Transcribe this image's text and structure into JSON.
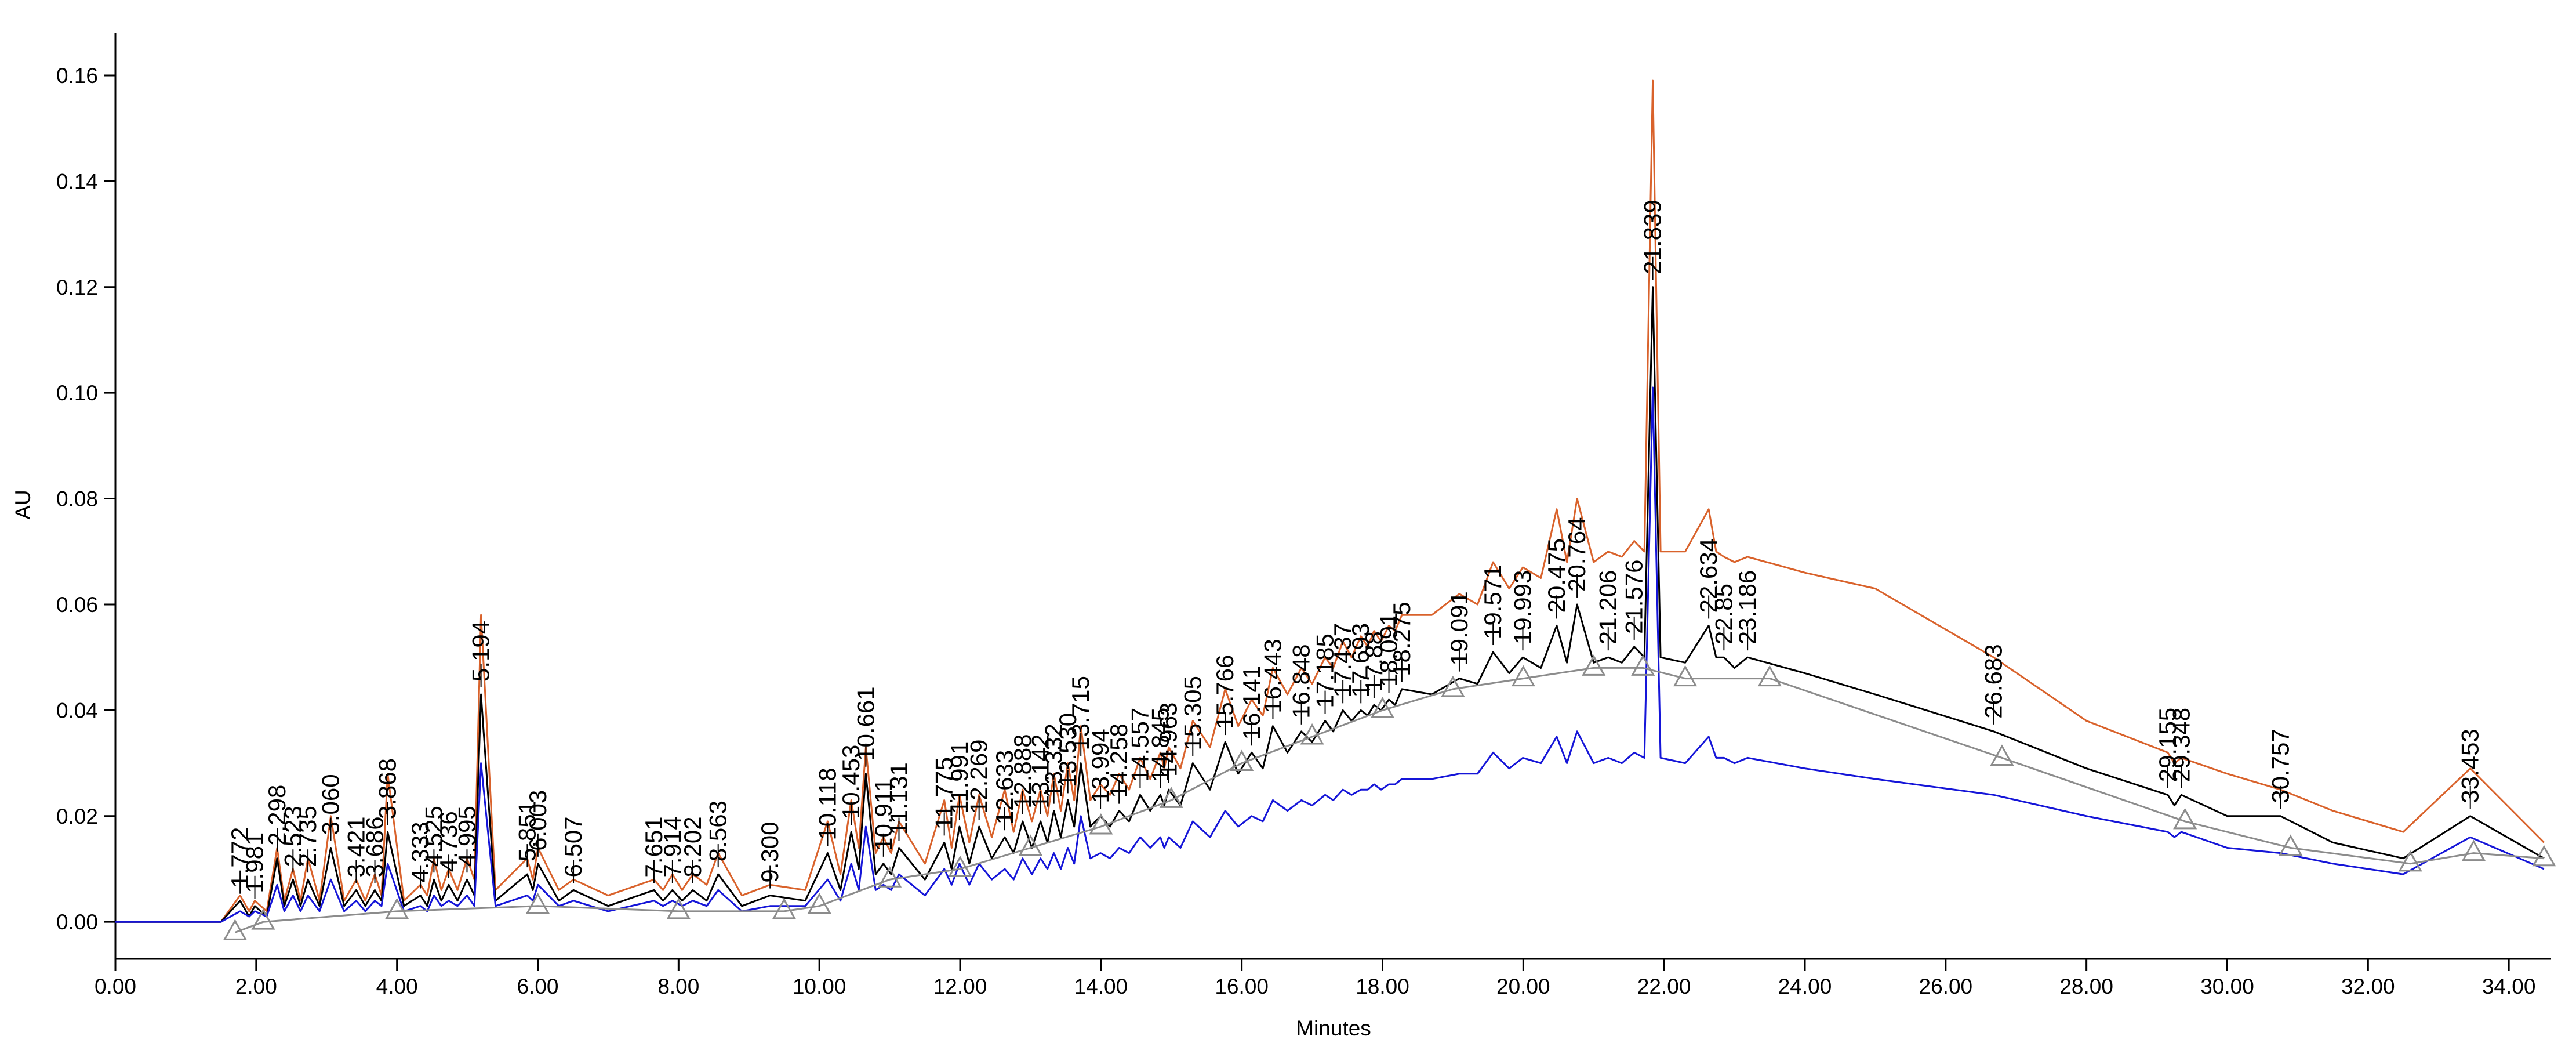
{
  "chart_data": {
    "type": "line",
    "xlabel": "Minutes",
    "ylabel": "AU",
    "xlim": [
      0,
      34.6
    ],
    "ylim": [
      -0.007,
      0.168
    ],
    "xticks": [
      {
        "value": 0,
        "label": "0.00"
      },
      {
        "value": 2,
        "label": "2.00"
      },
      {
        "value": 4,
        "label": "4.00"
      },
      {
        "value": 6,
        "label": "6.00"
      },
      {
        "value": 8,
        "label": "8.00"
      },
      {
        "value": 10,
        "label": "10.00"
      },
      {
        "value": 12,
        "label": "12.00"
      },
      {
        "value": 14,
        "label": "14.00"
      },
      {
        "value": 16,
        "label": "16.00"
      },
      {
        "value": 18,
        "label": "18.00"
      },
      {
        "value": 20,
        "label": "20.00"
      },
      {
        "value": 22,
        "label": "22.00"
      },
      {
        "value": 24,
        "label": "24.00"
      },
      {
        "value": 26,
        "label": "26.00"
      },
      {
        "value": 28,
        "label": "28.00"
      },
      {
        "value": 30,
        "label": "30.00"
      },
      {
        "value": 32,
        "label": "32.00"
      },
      {
        "value": 34,
        "label": "34.00"
      }
    ],
    "yticks": [
      {
        "value": 0,
        "label": "0.00"
      },
      {
        "value": 0.02,
        "label": "0.02"
      },
      {
        "value": 0.04,
        "label": "0.04"
      },
      {
        "value": 0.06,
        "label": "0.06"
      },
      {
        "value": 0.08,
        "label": "0.08"
      },
      {
        "value": 0.1,
        "label": "0.10"
      },
      {
        "value": 0.12,
        "label": "0.12"
      },
      {
        "value": 0.14,
        "label": "0.14"
      },
      {
        "value": 0.16,
        "label": "0.16"
      }
    ],
    "x": [
      0,
      1.5,
      1.772,
      1.9,
      1.981,
      2.15,
      2.298,
      2.4,
      2.523,
      2.63,
      2.735,
      2.9,
      3.06,
      3.25,
      3.421,
      3.55,
      3.686,
      3.78,
      3.868,
      4.1,
      4.333,
      4.43,
      4.525,
      4.63,
      4.736,
      4.86,
      4.995,
      5.1,
      5.194,
      5.4,
      5.851,
      5.93,
      6.003,
      6.3,
      6.507,
      7.0,
      7.651,
      7.78,
      7.914,
      8.05,
      8.202,
      8.4,
      8.563,
      8.9,
      9.3,
      9.8,
      10.118,
      10.3,
      10.453,
      10.56,
      10.661,
      10.8,
      10.911,
      11.02,
      11.131,
      11.5,
      11.775,
      11.88,
      11.991,
      12.13,
      12.269,
      12.45,
      12.633,
      12.76,
      12.888,
      13.02,
      13.142,
      13.24,
      13.332,
      13.43,
      13.53,
      13.62,
      13.715,
      13.85,
      13.994,
      14.13,
      14.258,
      14.4,
      14.557,
      14.7,
      14.845,
      14.9,
      14.963,
      15.13,
      15.305,
      15.55,
      15.766,
      15.95,
      16.141,
      16.3,
      16.443,
      16.65,
      16.848,
      17.0,
      17.185,
      17.3,
      17.437,
      17.56,
      17.693,
      17.79,
      17.88,
      17.98,
      18.091,
      18.18,
      18.275,
      18.7,
      19.091,
      19.35,
      19.571,
      19.8,
      19.993,
      20.25,
      20.475,
      20.62,
      20.764,
      21.0,
      21.206,
      21.4,
      21.576,
      21.72,
      21.839,
      21.95,
      22.3,
      22.634,
      22.74,
      22.85,
      23.0,
      23.186,
      24,
      25,
      26.683,
      28,
      29.155,
      29.25,
      29.348,
      30,
      30.757,
      31.5,
      32.5,
      33.453,
      34.5
    ],
    "series": [
      {
        "color": "#d9622b",
        "values": [
          0,
          0,
          0.005,
          0.002,
          0.004,
          0.002,
          0.014,
          0.004,
          0.01,
          0.004,
          0.012,
          0.004,
          0.02,
          0.004,
          0.008,
          0.004,
          0.009,
          0.005,
          0.028,
          0.004,
          0.007,
          0.005,
          0.012,
          0.006,
          0.01,
          0.006,
          0.012,
          0.008,
          0.058,
          0.006,
          0.012,
          0.008,
          0.014,
          0.006,
          0.008,
          0.005,
          0.008,
          0.006,
          0.009,
          0.006,
          0.009,
          0.007,
          0.013,
          0.005,
          0.007,
          0.006,
          0.019,
          0.009,
          0.023,
          0.014,
          0.033,
          0.013,
          0.016,
          0.013,
          0.019,
          0.011,
          0.023,
          0.014,
          0.024,
          0.015,
          0.024,
          0.016,
          0.025,
          0.017,
          0.025,
          0.019,
          0.025,
          0.02,
          0.028,
          0.021,
          0.03,
          0.023,
          0.037,
          0.023,
          0.026,
          0.024,
          0.028,
          0.025,
          0.031,
          0.027,
          0.032,
          0.029,
          0.033,
          0.029,
          0.038,
          0.033,
          0.044,
          0.037,
          0.042,
          0.039,
          0.048,
          0.043,
          0.048,
          0.045,
          0.05,
          0.048,
          0.053,
          0.05,
          0.054,
          0.052,
          0.055,
          0.053,
          0.056,
          0.055,
          0.058,
          0.058,
          0.062,
          0.06,
          0.068,
          0.063,
          0.067,
          0.065,
          0.078,
          0.068,
          0.08,
          0.068,
          0.07,
          0.069,
          0.072,
          0.07,
          0.159,
          0.07,
          0.07,
          0.078,
          0.07,
          0.069,
          0.068,
          0.069,
          0.066,
          0.063,
          0.05,
          0.038,
          0.032,
          0.03,
          0.031,
          0.028,
          0.025,
          0.021,
          0.017,
          0.029,
          0.015
        ]
      },
      {
        "color": "#000000",
        "values": [
          0,
          0,
          0.004,
          0.001,
          0.003,
          0.001,
          0.012,
          0.003,
          0.008,
          0.003,
          0.008,
          0.003,
          0.014,
          0.003,
          0.006,
          0.003,
          0.006,
          0.004,
          0.017,
          0.003,
          0.005,
          0.003,
          0.008,
          0.004,
          0.007,
          0.004,
          0.008,
          0.005,
          0.043,
          0.004,
          0.009,
          0.006,
          0.011,
          0.004,
          0.006,
          0.003,
          0.006,
          0.004,
          0.006,
          0.004,
          0.006,
          0.004,
          0.009,
          0.003,
          0.005,
          0.004,
          0.013,
          0.006,
          0.017,
          0.01,
          0.028,
          0.009,
          0.011,
          0.009,
          0.014,
          0.008,
          0.015,
          0.01,
          0.018,
          0.011,
          0.018,
          0.012,
          0.016,
          0.013,
          0.019,
          0.014,
          0.019,
          0.015,
          0.021,
          0.016,
          0.023,
          0.018,
          0.03,
          0.018,
          0.02,
          0.018,
          0.021,
          0.019,
          0.024,
          0.021,
          0.024,
          0.022,
          0.025,
          0.022,
          0.03,
          0.025,
          0.034,
          0.028,
          0.032,
          0.029,
          0.037,
          0.032,
          0.036,
          0.034,
          0.038,
          0.036,
          0.04,
          0.038,
          0.04,
          0.039,
          0.041,
          0.04,
          0.042,
          0.041,
          0.044,
          0.043,
          0.046,
          0.045,
          0.051,
          0.047,
          0.05,
          0.048,
          0.056,
          0.049,
          0.06,
          0.049,
          0.05,
          0.049,
          0.052,
          0.05,
          0.12,
          0.05,
          0.049,
          0.056,
          0.05,
          0.05,
          0.048,
          0.05,
          0.047,
          0.043,
          0.036,
          0.029,
          0.024,
          0.022,
          0.024,
          0.02,
          0.02,
          0.015,
          0.012,
          0.02,
          0.012
        ]
      },
      {
        "color": "#1515d8",
        "values": [
          0,
          0,
          0.002,
          0.001,
          0.002,
          0.001,
          0.007,
          0.002,
          0.005,
          0.002,
          0.005,
          0.002,
          0.008,
          0.002,
          0.004,
          0.002,
          0.004,
          0.003,
          0.011,
          0.002,
          0.003,
          0.002,
          0.005,
          0.003,
          0.004,
          0.003,
          0.005,
          0.003,
          0.03,
          0.003,
          0.005,
          0.004,
          0.007,
          0.003,
          0.004,
          0.002,
          0.004,
          0.003,
          0.004,
          0.003,
          0.004,
          0.003,
          0.006,
          0.002,
          0.003,
          0.003,
          0.008,
          0.004,
          0.011,
          0.006,
          0.018,
          0.006,
          0.007,
          0.006,
          0.009,
          0.005,
          0.01,
          0.007,
          0.011,
          0.007,
          0.011,
          0.008,
          0.01,
          0.008,
          0.012,
          0.009,
          0.012,
          0.01,
          0.013,
          0.01,
          0.014,
          0.011,
          0.02,
          0.012,
          0.013,
          0.012,
          0.014,
          0.013,
          0.016,
          0.014,
          0.016,
          0.014,
          0.016,
          0.014,
          0.019,
          0.016,
          0.021,
          0.018,
          0.02,
          0.019,
          0.023,
          0.021,
          0.023,
          0.022,
          0.024,
          0.023,
          0.025,
          0.024,
          0.025,
          0.025,
          0.026,
          0.025,
          0.026,
          0.026,
          0.027,
          0.027,
          0.028,
          0.028,
          0.032,
          0.029,
          0.031,
          0.03,
          0.035,
          0.03,
          0.036,
          0.03,
          0.031,
          0.03,
          0.032,
          0.031,
          0.101,
          0.031,
          0.03,
          0.035,
          0.031,
          0.031,
          0.03,
          0.031,
          0.029,
          0.027,
          0.024,
          0.02,
          0.017,
          0.016,
          0.017,
          0.014,
          0.013,
          0.011,
          0.009,
          0.016,
          0.01
        ]
      },
      {
        "color": "#8c8c8c",
        "x": [
          1.7,
          2.1,
          4,
          6,
          8,
          9.5,
          10,
          11,
          12,
          13,
          14,
          15,
          16,
          17,
          18,
          19,
          20,
          21,
          21.7,
          22.3,
          23.5,
          26.8,
          29.4,
          30.9,
          32.6,
          33.5,
          34.5
        ],
        "values": [
          -0.002,
          0,
          0.002,
          0.003,
          0.002,
          0.002,
          0.003,
          0.008,
          0.01,
          0.014,
          0.018,
          0.023,
          0.03,
          0.035,
          0.04,
          0.044,
          0.046,
          0.048,
          0.048,
          0.046,
          0.046,
          0.031,
          0.019,
          0.014,
          0.011,
          0.013,
          0.012
        ]
      }
    ],
    "peaks": [
      1.772,
      1.981,
      2.298,
      2.523,
      2.735,
      {
        "value": 3.06,
        "label": "3.060"
      },
      3.421,
      3.686,
      3.868,
      4.333,
      4.525,
      4.736,
      4.995,
      5.194,
      5.851,
      6.003,
      6.507,
      7.651,
      7.914,
      8.202,
      8.563,
      {
        "value": 9.3,
        "label": "9.300"
      },
      10.118,
      10.453,
      10.661,
      10.911,
      11.131,
      11.775,
      11.991,
      12.269,
      12.633,
      12.888,
      13.142,
      13.332,
      {
        "value": 13.53,
        "label": "13.530"
      },
      13.715,
      13.994,
      14.258,
      14.557,
      14.845,
      14.963,
      15.305,
      15.766,
      16.141,
      16.443,
      16.848,
      17.185,
      17.437,
      17.693,
      17.88,
      18.091,
      18.275,
      19.091,
      19.571,
      19.993,
      20.475,
      20.764,
      21.206,
      21.576,
      21.839,
      22.634,
      22.85,
      23.186,
      26.683,
      29.155,
      29.348,
      30.757,
      33.453
    ]
  }
}
